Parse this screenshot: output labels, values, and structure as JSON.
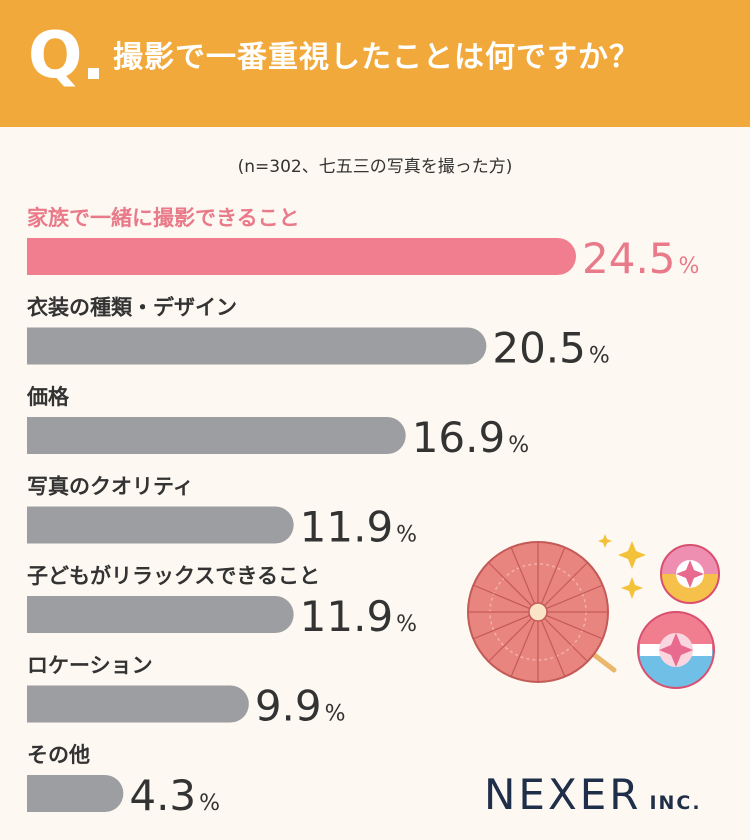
{
  "header": {
    "q_mark": "Q",
    "question": "撮影で一番重視したことは何ですか？"
  },
  "note": "(n=302、七五三の写真を撮った方)",
  "logo": {
    "main": "NEXER",
    "sub": "INC."
  },
  "colors": {
    "highlight": "#f07e8e",
    "bar": "#9d9ea2",
    "header": "#f2a93b"
  },
  "chart_data": {
    "type": "bar",
    "orientation": "horizontal",
    "unit": "%",
    "categories": [
      "家族で一緒に撮影できること",
      "衣装の種類・デザイン",
      "価格",
      "写真のクオリティ",
      "子どもがリラックスできること",
      "ロケーション",
      "その他"
    ],
    "values": [
      24.5,
      20.5,
      16.9,
      11.9,
      11.9,
      9.9,
      4.3
    ],
    "value_labels": [
      "24.5",
      "20.5",
      "16.9",
      "11.9",
      "11.9",
      "9.9",
      "4.3"
    ],
    "highlight_index": 0
  }
}
